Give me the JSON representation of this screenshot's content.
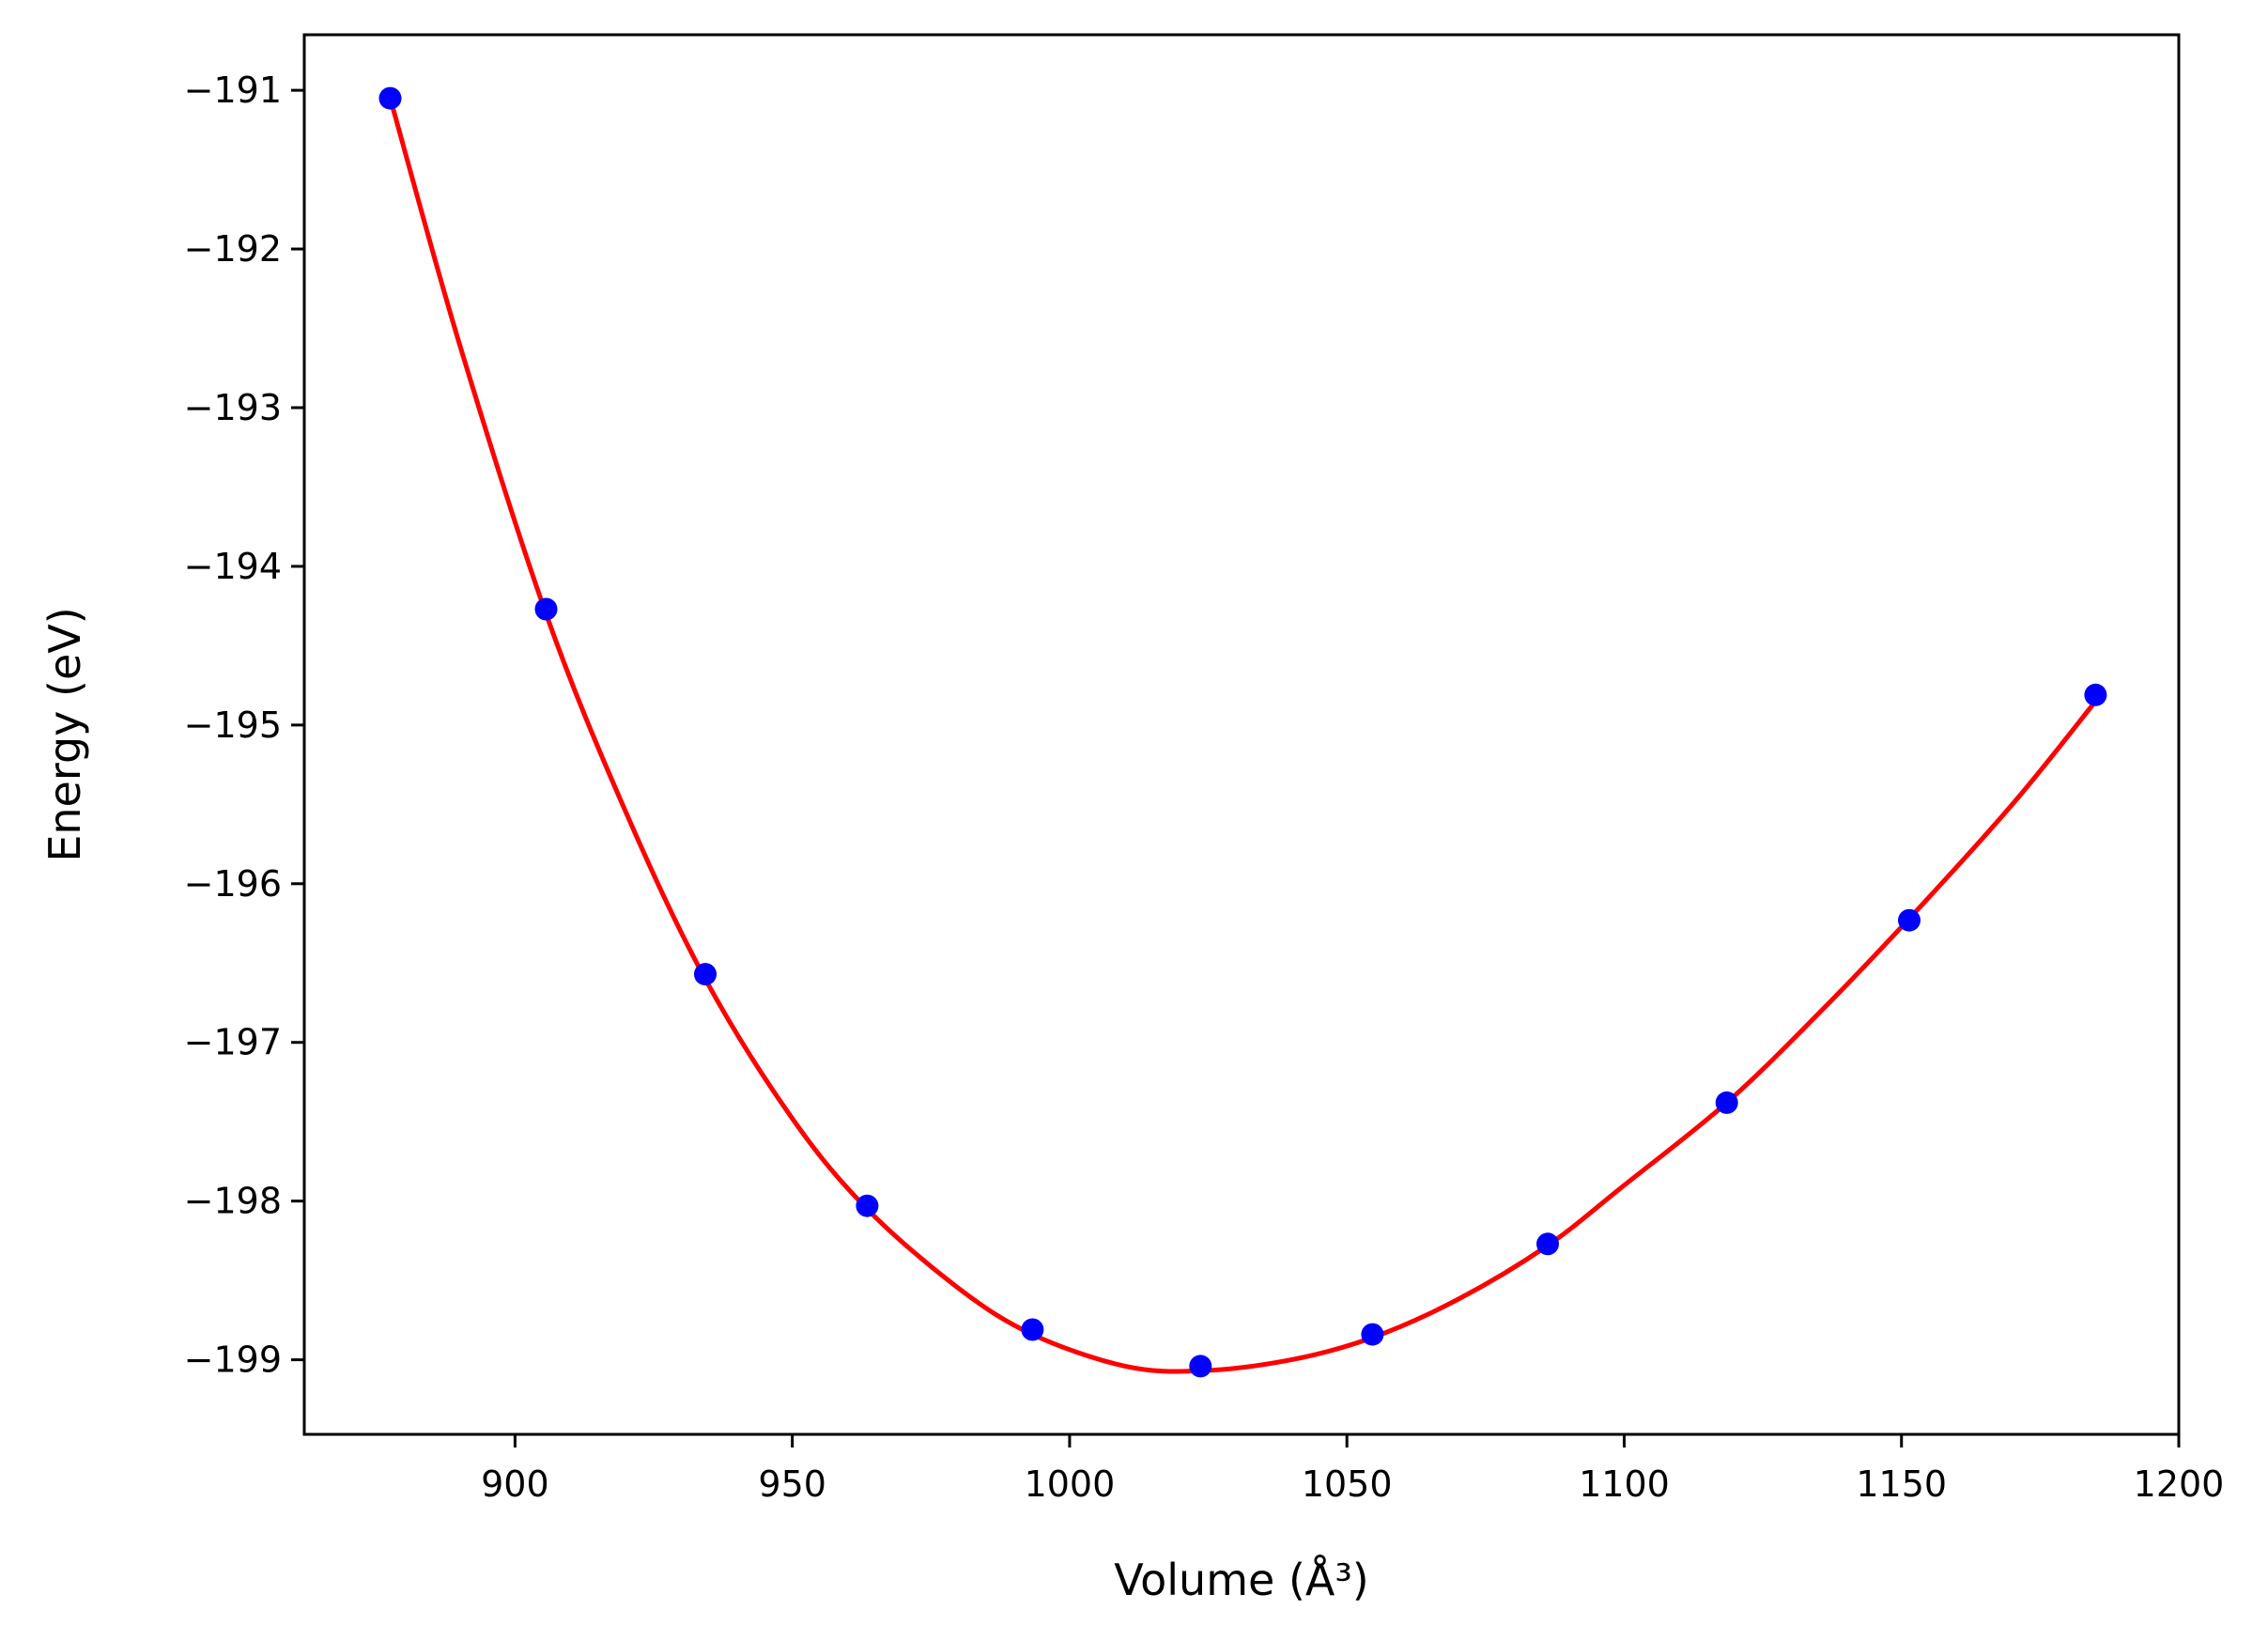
{
  "chart_data": {
    "type": "scatter",
    "xlabel": "Volume (Å³)",
    "ylabel": "Energy (eV)",
    "xlim": [
      862,
      1200
    ],
    "ylim": [
      -199.47,
      -190.65
    ],
    "x_ticks": [
      900,
      950,
      1000,
      1050,
      1100,
      1150,
      1200
    ],
    "x_tick_labels": [
      "900",
      "950",
      "1000",
      "1050",
      "1100",
      "1150",
      "1200"
    ],
    "y_ticks": [
      -191,
      -192,
      -193,
      -194,
      -195,
      -196,
      -197,
      -198,
      -199
    ],
    "y_tick_labels": [
      "−191",
      "−192",
      "−193",
      "−194",
      "−195",
      "−196",
      "−197",
      "−198",
      "−199"
    ],
    "grid": false,
    "series": [
      {
        "kind": "points",
        "color": "#0000ff",
        "x": [
          877.5,
          905.6,
          934.3,
          963.5,
          993.3,
          1023.6,
          1054.6,
          1086.2,
          1118.5,
          1151.4,
          1185.0
        ],
        "y": [
          -191.05,
          -194.27,
          -196.57,
          -198.03,
          -198.81,
          -199.04,
          -198.84,
          -198.27,
          -197.38,
          -196.23,
          -194.81
        ]
      },
      {
        "kind": "fit-curve",
        "color": "#ff0000",
        "x": [
          877.5,
          890,
          905.6,
          920,
          934.3,
          950,
          963.5,
          980,
          993.3,
          1010,
          1023.6,
          1040,
          1054.6,
          1070,
          1086.2,
          1100,
          1118.5,
          1135,
          1151.4,
          1170,
          1185.0
        ],
        "y": [
          -191.05,
          -192.6,
          -194.3,
          -195.55,
          -196.6,
          -197.48,
          -198.05,
          -198.55,
          -198.84,
          -199.04,
          -199.07,
          -199.0,
          -198.86,
          -198.62,
          -198.28,
          -197.9,
          -197.38,
          -196.82,
          -196.22,
          -195.5,
          -194.85
        ]
      }
    ]
  }
}
